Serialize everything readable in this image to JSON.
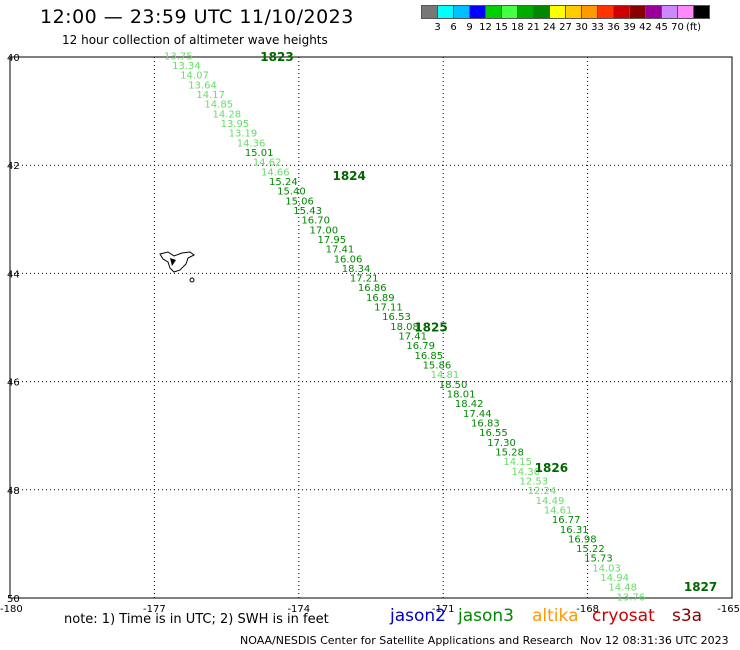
{
  "header": {
    "title": "12:00 — 23:59 UTC 11/10/2023",
    "subtitle": "12 hour collection of altimeter wave heights"
  },
  "colorbar": {
    "unit": "(ft)",
    "colors": [
      "#777777",
      "#00ffff",
      "#00bfff",
      "#0000ff",
      "#00d000",
      "#44ff44",
      "#00aa00",
      "#008800",
      "#ffff00",
      "#ffcc00",
      "#ff9900",
      "#ff3300",
      "#cc0000",
      "#880000",
      "#990099",
      "#cc88ff",
      "#ff88ff",
      "#000000"
    ],
    "labels": [
      "3",
      "6",
      "9",
      "12",
      "15",
      "18",
      "21",
      "24",
      "27",
      "30",
      "33",
      "36",
      "39",
      "42",
      "45",
      "70"
    ]
  },
  "map": {
    "lat_labels": [
      "40",
      "42",
      "44",
      "46",
      "48",
      "50"
    ],
    "lon_labels": [
      "-180",
      "-177",
      "-174",
      "-171",
      "-168",
      "-165"
    ],
    "pass_labels": [
      {
        "text": "1823",
        "lat": 40.0,
        "lon": -174.8
      },
      {
        "text": "1824",
        "lat": 42.2,
        "lon": -173.3
      },
      {
        "text": "1825",
        "lat": 45.0,
        "lon": -171.6
      },
      {
        "text": "1826",
        "lat": 47.6,
        "lon": -169.1
      },
      {
        "text": "1827",
        "lat": 49.8,
        "lon": -166.0
      }
    ],
    "values": [
      "13.75",
      "13.34",
      "14.07",
      "13.64",
      "14.17",
      "14.85",
      "14.28",
      "13.95",
      "13.19",
      "14.36",
      "15.01",
      "14.62",
      "14.66",
      "15.24",
      "15.40",
      "15.06",
      "15.43",
      "16.70",
      "17.00",
      "17.95",
      "17.41",
      "16.06",
      "18.34",
      "17.21",
      "16.86",
      "16.89",
      "17.11",
      "16.53",
      "18.08",
      "17.41",
      "16.79",
      "16.85",
      "15.86",
      "14.81",
      "18.50",
      "18.01",
      "18.42",
      "17.44",
      "16.83",
      "16.55",
      "17.30",
      "15.28",
      "14.15",
      "14.30",
      "12.53",
      "12.24",
      "14.49",
      "14.61",
      "16.77",
      "16.31",
      "16.98",
      "15.22",
      "15.73",
      "14.03",
      "14.94",
      "14.48",
      "13.76"
    ]
  },
  "footer": {
    "note": "note:  1) Time is in UTC; 2) SWH is in feet",
    "legend": [
      {
        "text": "jason2",
        "color": "#0000cc"
      },
      {
        "text": "jason3",
        "color": "#008800"
      },
      {
        "text": "altika",
        "color": "#ff9900"
      },
      {
        "text": "cryosat",
        "color": "#cc0000"
      },
      {
        "text": "s3a",
        "color": "#880000"
      }
    ],
    "credit": "NOAA/NESDIS Center for Satellite Applications and Research",
    "timestamp": "Nov 12 08:31:36 UTC 2023"
  }
}
